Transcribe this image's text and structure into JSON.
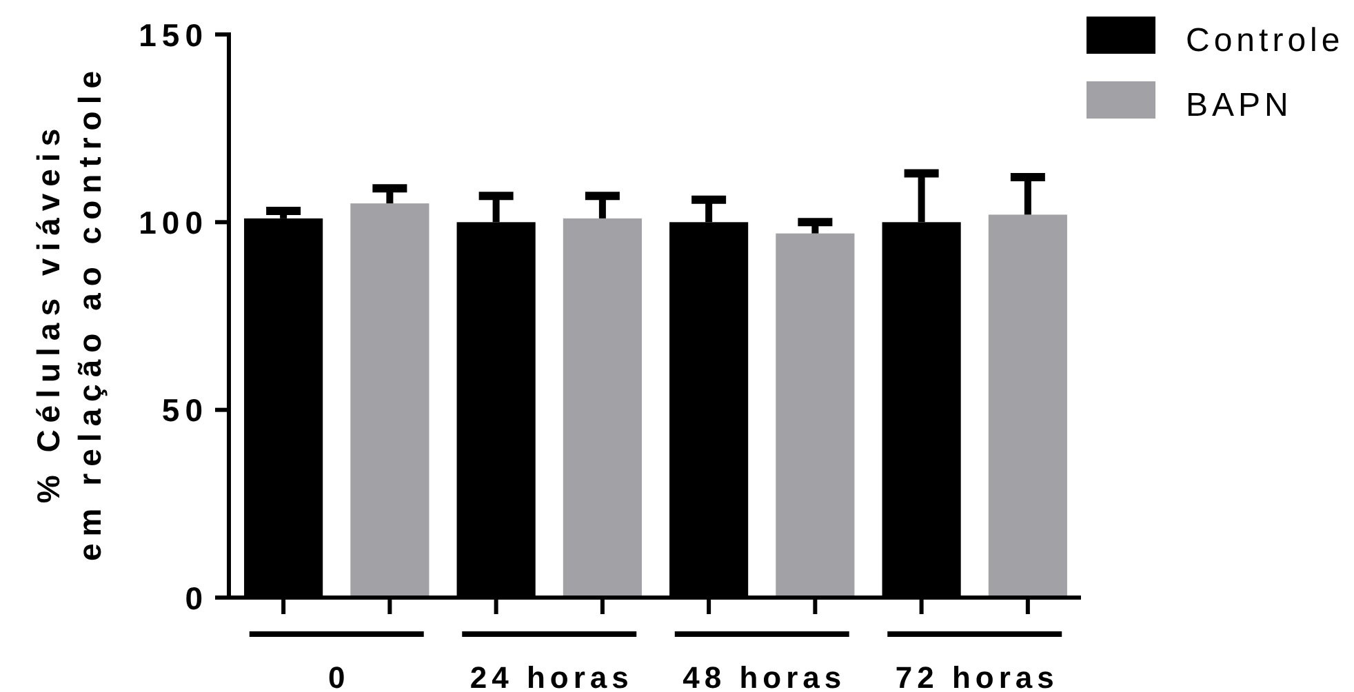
{
  "chart_data": {
    "type": "bar",
    "ylabel": "% Células viáveis\nem relação ao controle",
    "categories": [
      "0",
      "24 horas",
      "48 horas",
      "72 horas"
    ],
    "series": [
      {
        "name": "Controle",
        "color": "#000000",
        "values": [
          101,
          100,
          100,
          100
        ],
        "errors": [
          2,
          7,
          6,
          13
        ]
      },
      {
        "name": "BAPN",
        "color": "#a2a1a6",
        "values": [
          105,
          101,
          97,
          102
        ],
        "errors": [
          4,
          6,
          3,
          10
        ]
      }
    ],
    "ylim": [
      0,
      150
    ],
    "yticks": [
      0,
      50,
      100,
      150
    ],
    "legend": "top right"
  }
}
